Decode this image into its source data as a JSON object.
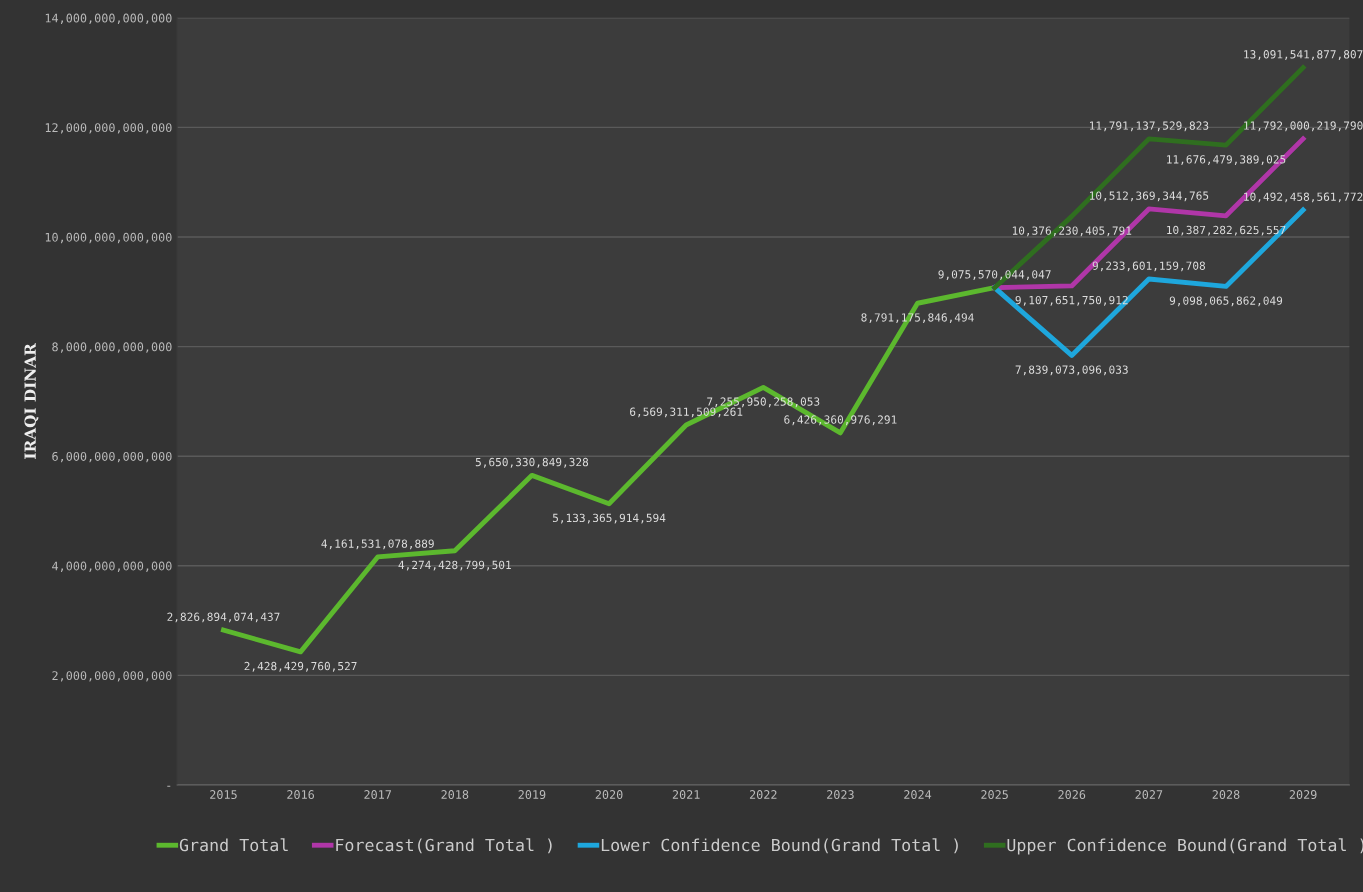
{
  "chart_data": {
    "type": "line",
    "ylabel": "IRAQI DINAR",
    "categories": [
      "2015",
      "2016",
      "2017",
      "2018",
      "2019",
      "2020",
      "2021",
      "2022",
      "2023",
      "2024",
      "2025",
      "2026",
      "2027",
      "2028",
      "2029"
    ],
    "series": [
      {
        "name": "Grand Total",
        "color": "#5cb82e",
        "values": [
          2826894074437,
          2428429760527,
          4161531078889,
          4274428799501,
          5650330849328,
          5133365914594,
          6569311509261,
          7255950258053,
          6426360976291,
          8791175846494,
          9075570044047,
          null,
          null,
          null,
          null
        ],
        "value_labels": [
          "2,826,894,074,437",
          "2,428,429,760,527",
          "4,161,531,078,889",
          "4,274,428,799,501",
          "5,650,330,849,328",
          "5,133,365,914,594",
          "6,569,311,509,261",
          "7,255,950,258,053",
          "6,426,360,976,291",
          "8,791,175,846,494",
          "9,075,570,044,047",
          null,
          null,
          null,
          null
        ]
      },
      {
        "name": "Forecast(Grand Total )",
        "color": "#b036a8",
        "values": [
          null,
          null,
          null,
          null,
          null,
          null,
          null,
          null,
          null,
          null,
          9075570044047,
          9107651750912,
          10512369344765,
          10387282625557,
          11792000219790
        ],
        "value_labels": [
          null,
          null,
          null,
          null,
          null,
          null,
          null,
          null,
          null,
          null,
          null,
          "9,107,651,750,912",
          "10,512,369,344,765",
          "10,387,282,625,557",
          "11,792,000,219,790"
        ]
      },
      {
        "name": "Lower Confidence Bound(Grand Total )",
        "color": "#1ea7dd",
        "values": [
          null,
          null,
          null,
          null,
          null,
          null,
          null,
          null,
          null,
          null,
          9075570044047,
          7839073096033,
          9233601159708,
          9098065862049,
          10492458561772
        ],
        "value_labels": [
          null,
          null,
          null,
          null,
          null,
          null,
          null,
          null,
          null,
          null,
          null,
          "7,839,073,096,033",
          "9,233,601,159,708",
          "9,098,065,862,049",
          "10,492,458,561,772"
        ]
      },
      {
        "name": "Upper Confidence Bound(Grand Total )",
        "color": "#2f6e1f",
        "values": [
          null,
          null,
          null,
          null,
          null,
          null,
          null,
          null,
          null,
          null,
          9075570044047,
          10376230405791,
          11791137529823,
          11676479389025,
          13091541877807
        ],
        "value_labels": [
          null,
          null,
          null,
          null,
          null,
          null,
          null,
          null,
          null,
          null,
          null,
          "10,376,230,405,791",
          "11,791,137,529,823",
          "11,676,479,389,025",
          "13,091,541,877,807"
        ]
      }
    ],
    "ylim": [
      0,
      14000000000000
    ],
    "yticks": [
      {
        "value": 0,
        "label": "-"
      },
      {
        "value": 2000000000000,
        "label": "2,000,000,000,000"
      },
      {
        "value": 4000000000000,
        "label": "4,000,000,000,000"
      },
      {
        "value": 6000000000000,
        "label": "6,000,000,000,000"
      },
      {
        "value": 8000000000000,
        "label": "8,000,000,000,000"
      },
      {
        "value": 10000000000000,
        "label": "10,000,000,000,000"
      },
      {
        "value": 12000000000000,
        "label": "12,000,000,000,000"
      },
      {
        "value": 14000000000000,
        "label": "14,000,000,000,000"
      }
    ],
    "grid": "y",
    "legend": "bottom",
    "marker": "none",
    "line_style": "solid"
  }
}
